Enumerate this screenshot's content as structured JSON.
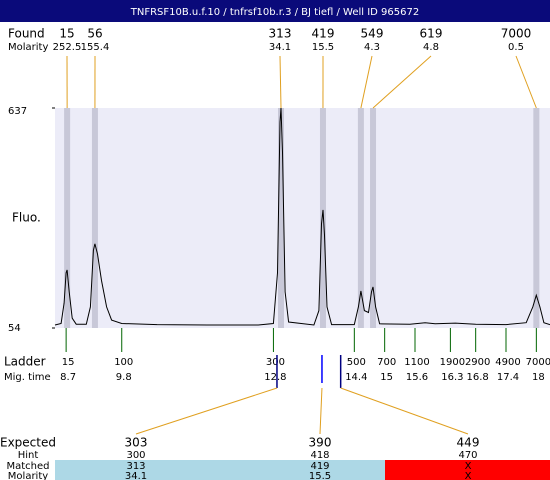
{
  "chart_data": {
    "type": "line",
    "title": "TNFRSF10B.u.f.10 / tnfrsf10b.r.3 / BJ tiefl / Well ID 965672",
    "found_label": "Found",
    "found_molarity_label": "Molarity",
    "found_peaks": [
      {
        "size": 15,
        "molarity": 252.5,
        "time": 8.72
      },
      {
        "size": 56,
        "molarity": 155.4,
        "time": 9.27
      },
      {
        "size": 313,
        "molarity": 34.1,
        "time": 12.95
      },
      {
        "size": 419,
        "molarity": 15.5,
        "time": 13.78
      },
      {
        "size": 549,
        "molarity": 4.3,
        "time": 14.53
      },
      {
        "size": 619,
        "molarity": 4.8,
        "time": 14.77
      },
      {
        "size": 7000,
        "molarity": 0.5,
        "time": 18.0
      }
    ],
    "ylabel": "Fluo.",
    "ylim": [
      54,
      637
    ],
    "yticks": [
      54,
      637
    ],
    "xlim": [
      8.48,
      18.27
    ],
    "x": [
      8.48,
      8.6,
      8.66,
      8.7,
      8.72,
      8.76,
      8.82,
      8.9,
      9.1,
      9.18,
      9.24,
      9.27,
      9.32,
      9.4,
      9.5,
      9.6,
      9.8,
      10.5,
      11.5,
      12.5,
      12.8,
      12.88,
      12.93,
      12.95,
      12.98,
      13.03,
      13.1,
      13.6,
      13.7,
      13.75,
      13.78,
      13.81,
      13.86,
      13.95,
      14.4,
      14.48,
      14.53,
      14.6,
      14.68,
      14.74,
      14.77,
      14.82,
      14.9,
      15.5,
      15.8,
      16.0,
      16.4,
      16.8,
      17.4,
      17.8,
      17.93,
      18.0,
      18.07,
      18.15,
      18.27
    ],
    "series": [
      {
        "color": "#000000",
        "values": [
          62,
          66,
          120,
          200,
          208,
          150,
          80,
          64,
          64,
          110,
          260,
          277,
          250,
          180,
          110,
          75,
          66,
          63,
          62,
          62,
          66,
          200,
          600,
          637,
          520,
          150,
          70,
          62,
          100,
          330,
          367,
          300,
          110,
          63,
          63,
          110,
          152,
          100,
          95,
          150,
          163,
          110,
          65,
          64,
          68,
          65,
          67,
          64,
          63,
          68,
          110,
          141,
          110,
          68,
          63
        ]
      }
    ],
    "ladder_label": "Ladder",
    "mig_time_label": "Mig. time",
    "ladder": [
      {
        "size": 15,
        "time": 8.7
      },
      {
        "size": 100,
        "time": 9.8
      },
      {
        "size": 300,
        "time": 12.8
      },
      {
        "size": 500,
        "time": 14.4
      },
      {
        "size": 700,
        "time": 15
      },
      {
        "size": 1100,
        "time": 15.6
      },
      {
        "size": 1900,
        "time": 16.3
      },
      {
        "size": 2900,
        "time": 16.8
      },
      {
        "size": 4900,
        "time": 17.4
      },
      {
        "size": 7000,
        "time": 18
      }
    ],
    "expected_label": "Expected",
    "hint_label": "Hint",
    "matched_label": "Matched",
    "molarity_label": "Molarity",
    "expected": [
      {
        "size": 303,
        "time": 12.87,
        "hint": 300,
        "matched": 313,
        "molarity": 34.1
      },
      {
        "size": 390,
        "time": 13.76,
        "hint": 418,
        "matched": 419,
        "molarity": 15.5
      },
      {
        "size": 449,
        "time": 14.13,
        "hint": 470,
        "matched": "X",
        "molarity": "X"
      }
    ]
  }
}
